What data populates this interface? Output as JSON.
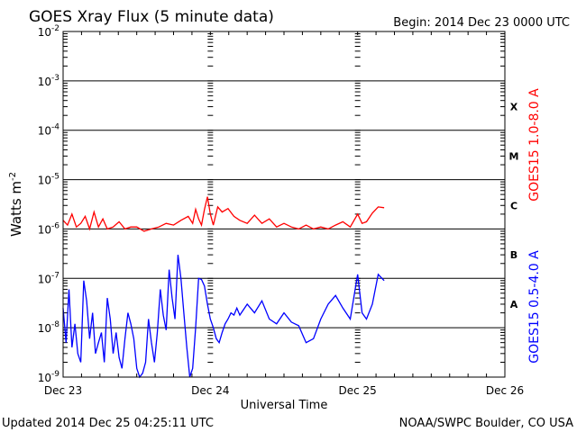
{
  "chart_data": {
    "type": "line",
    "title": "GOES Xray Flux (5 minute data)",
    "begin_label": "Begin:  2014 Dec 23 0000 UTC",
    "xlabel": "Universal Time",
    "ylabel": "Watts m",
    "ylabel_exponent": "-2",
    "y_scale": "log",
    "ylim": [
      1e-09,
      0.01
    ],
    "xlim_days": [
      0,
      3
    ],
    "x_tick_labels": [
      "Dec 23",
      "Dec 24",
      "Dec 25",
      "Dec 26"
    ],
    "y_tick_labels": [
      {
        "base": "10",
        "exp": "-2",
        "value": 0.01
      },
      {
        "base": "10",
        "exp": "-3",
        "value": 0.001
      },
      {
        "base": "10",
        "exp": "-4",
        "value": 0.0001
      },
      {
        "base": "10",
        "exp": "-5",
        "value": 1e-05
      },
      {
        "base": "10",
        "exp": "-6",
        "value": 1e-06
      },
      {
        "base": "10",
        "exp": "-7",
        "value": 1e-07
      },
      {
        "base": "10",
        "exp": "-8",
        "value": 1e-08
      },
      {
        "base": "10",
        "exp": "-9",
        "value": 1e-09
      }
    ],
    "flare_classes": [
      {
        "label": "X",
        "value": 0.0003
      },
      {
        "label": "M",
        "value": 3e-05
      },
      {
        "label": "C",
        "value": 3e-06
      },
      {
        "label": "B",
        "value": 3e-07
      },
      {
        "label": "A",
        "value": 3e-08
      }
    ],
    "grid": true,
    "series": [
      {
        "name": "GOES15 1.0-8.0 A",
        "color": "#ff0000",
        "x": [
          0.0,
          0.03,
          0.06,
          0.09,
          0.12,
          0.15,
          0.18,
          0.21,
          0.24,
          0.27,
          0.3,
          0.34,
          0.38,
          0.42,
          0.46,
          0.5,
          0.55,
          0.6,
          0.65,
          0.7,
          0.75,
          0.8,
          0.85,
          0.88,
          0.9,
          0.92,
          0.94,
          0.96,
          0.98,
          1.0,
          1.02,
          1.05,
          1.08,
          1.12,
          1.16,
          1.2,
          1.25,
          1.3,
          1.35,
          1.4,
          1.45,
          1.5,
          1.55,
          1.6,
          1.65,
          1.7,
          1.75,
          1.8,
          1.85,
          1.9,
          1.95,
          2.0,
          2.03,
          2.06,
          2.1,
          2.14,
          2.18
        ],
        "y": [
          1.5e-06,
          1.2e-06,
          2e-06,
          1.1e-06,
          1.3e-06,
          1.8e-06,
          1e-06,
          2.2e-06,
          1.1e-06,
          1.6e-06,
          1e-06,
          1.1e-06,
          1.4e-06,
          1e-06,
          1.1e-06,
          1.1e-06,
          9e-07,
          1e-06,
          1.1e-06,
          1.3e-06,
          1.2e-06,
          1.5e-06,
          1.8e-06,
          1.3e-06,
          2.5e-06,
          1.6e-06,
          1.2e-06,
          2.5e-06,
          4.5e-06,
          2e-06,
          1.2e-06,
          2.8e-06,
          2.2e-06,
          2.6e-06,
          1.8e-06,
          1.5e-06,
          1.3e-06,
          1.9e-06,
          1.3e-06,
          1.6e-06,
          1.1e-06,
          1.3e-06,
          1.1e-06,
          1e-06,
          1.2e-06,
          1e-06,
          1.1e-06,
          1e-06,
          1.2e-06,
          1.4e-06,
          1.1e-06,
          2e-06,
          1.3e-06,
          1.4e-06,
          2.1e-06,
          2.8e-06,
          2.7e-06
        ]
      },
      {
        "name": "GOES15 0.5-4.0 A",
        "color": "#0000ff",
        "x": [
          0.0,
          0.02,
          0.04,
          0.06,
          0.08,
          0.1,
          0.12,
          0.14,
          0.16,
          0.18,
          0.2,
          0.22,
          0.24,
          0.26,
          0.28,
          0.3,
          0.32,
          0.34,
          0.36,
          0.38,
          0.4,
          0.42,
          0.44,
          0.46,
          0.48,
          0.5,
          0.52,
          0.54,
          0.56,
          0.58,
          0.6,
          0.62,
          0.64,
          0.66,
          0.68,
          0.7,
          0.72,
          0.74,
          0.76,
          0.78,
          0.8,
          0.82,
          0.84,
          0.86,
          0.88,
          0.9,
          0.92,
          0.94,
          0.96,
          0.98,
          1.0,
          1.02,
          1.04,
          1.06,
          1.08,
          1.1,
          1.12,
          1.14,
          1.16,
          1.18,
          1.2,
          1.25,
          1.3,
          1.35,
          1.4,
          1.45,
          1.5,
          1.55,
          1.6,
          1.65,
          1.7,
          1.75,
          1.8,
          1.85,
          1.9,
          1.95,
          2.0,
          2.03,
          2.06,
          2.1,
          2.14,
          2.18
        ],
        "y": [
          2.5e-08,
          5e-09,
          6e-08,
          4e-09,
          1.2e-08,
          3e-09,
          2e-09,
          9e-08,
          3.5e-08,
          6e-09,
          2e-08,
          3e-09,
          5e-09,
          8e-09,
          2e-09,
          4e-08,
          1.5e-08,
          3e-09,
          8e-09,
          2.5e-09,
          1.5e-09,
          6e-09,
          2e-08,
          1.2e-08,
          6e-09,
          1.5e-09,
          1e-09,
          1.2e-09,
          2e-09,
          1.5e-08,
          5e-09,
          2e-09,
          8e-09,
          6e-08,
          1.8e-08,
          9e-09,
          1.5e-07,
          4e-08,
          1.5e-08,
          3e-07,
          1e-07,
          2e-08,
          4e-09,
          1e-09,
          1.5e-09,
          1e-08,
          1e-07,
          9.5e-08,
          7e-08,
          3e-08,
          1.5e-08,
          1e-08,
          6e-09,
          5e-09,
          8e-09,
          1.2e-08,
          1.5e-08,
          2e-08,
          1.8e-08,
          2.5e-08,
          1.8e-08,
          3e-08,
          2e-08,
          3.5e-08,
          1.5e-08,
          1.2e-08,
          2e-08,
          1.3e-08,
          1.1e-08,
          5e-09,
          6e-09,
          1.5e-08,
          3e-08,
          4.5e-08,
          2.5e-08,
          1.5e-08,
          1.2e-07,
          2e-08,
          1.5e-08,
          3e-08,
          1.2e-07,
          9e-08
        ]
      }
    ]
  },
  "footer": {
    "updated": "Updated 2014 Dec 25 04:25:11 UTC",
    "credit": "NOAA/SWPC Boulder, CO USA"
  }
}
